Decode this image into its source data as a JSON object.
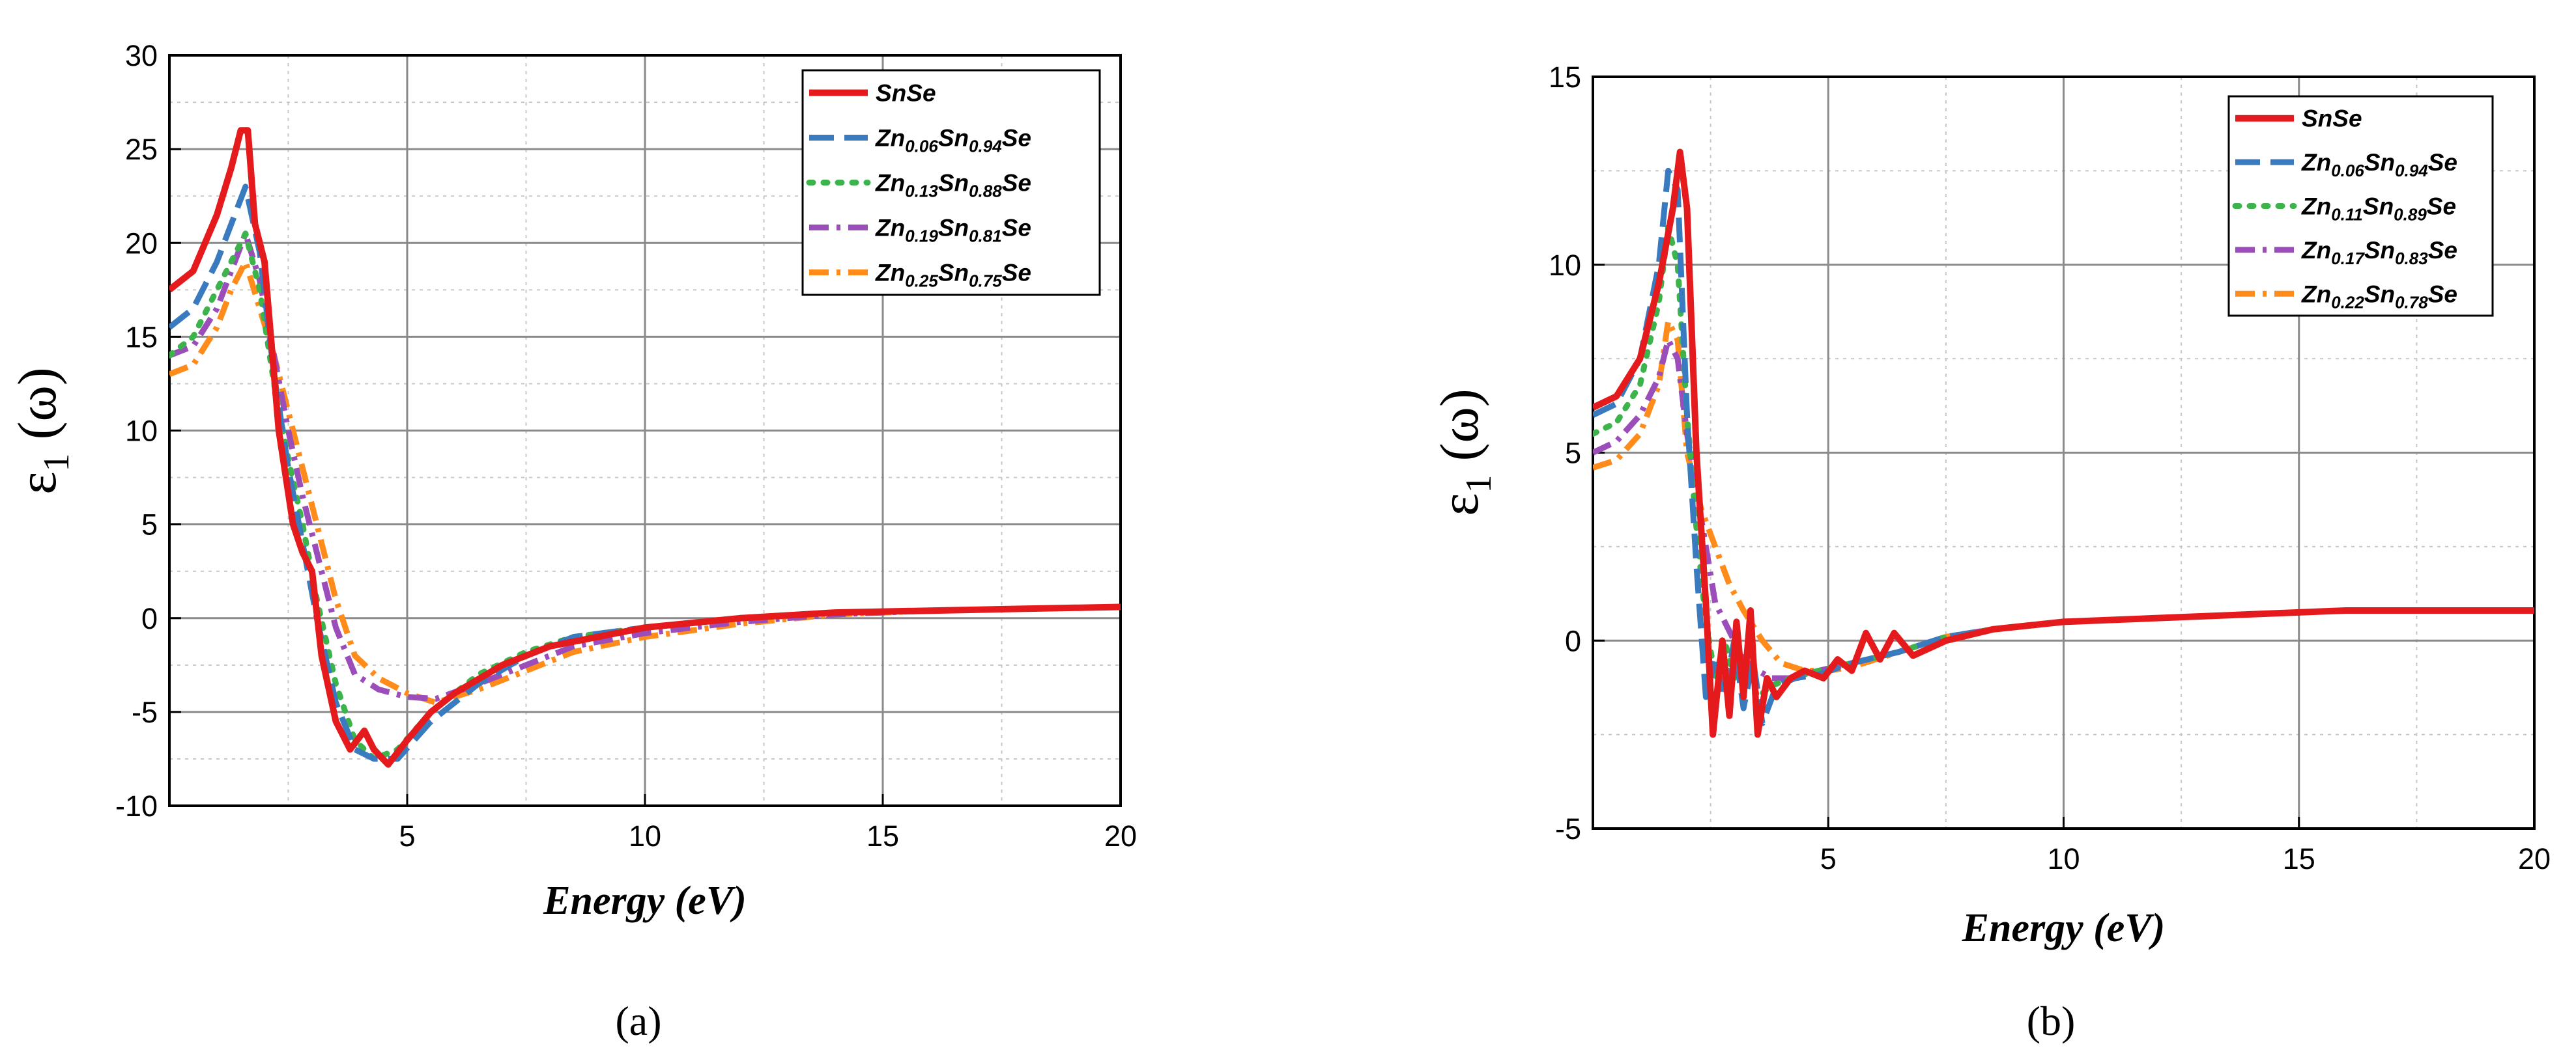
{
  "colors": {
    "series": [
      "#e41a1c",
      "#3a7bbf",
      "#3cb44b",
      "#9b4dba",
      "#ff8c1a"
    ]
  },
  "chart_data": [
    {
      "panel": "(a)",
      "type": "line",
      "title": "",
      "xlabel": "Energy (eV)",
      "ylabel": "ε1 (ω)",
      "xlim": [
        0,
        20
      ],
      "ylim": [
        -10,
        30
      ],
      "xticks": [
        5,
        10,
        15,
        20
      ],
      "yticks": [
        -10,
        -5,
        0,
        5,
        10,
        15,
        20,
        25,
        30
      ],
      "grid": true,
      "legend_position": "top-right",
      "series": [
        {
          "name": "SnSe",
          "label": "SnSe",
          "sub": [],
          "style": "solid",
          "color": "#e41a1c",
          "x": [
            0,
            0.5,
            1.0,
            1.3,
            1.5,
            1.65,
            1.8,
            2.0,
            2.3,
            2.6,
            2.8,
            3.0,
            3.2,
            3.5,
            3.8,
            4.1,
            4.3,
            4.6,
            5.0,
            5.5,
            6.0,
            7.0,
            8.0,
            9.0,
            10.0,
            12.0,
            14.0,
            16.0,
            18.0,
            20.0
          ],
          "y": [
            17.5,
            18.5,
            21.5,
            24.0,
            26.0,
            26.0,
            21.0,
            19.0,
            10.0,
            5.0,
            3.5,
            2.5,
            -2.0,
            -5.5,
            -7.0,
            -6.0,
            -7.0,
            -7.8,
            -6.5,
            -5.0,
            -4.0,
            -2.5,
            -1.5,
            -1.0,
            -0.5,
            0.0,
            0.3,
            0.4,
            0.5,
            0.6
          ]
        },
        {
          "name": "Zn0.06Sn0.94Se",
          "label": "Zn",
          "sub": [
            "0.06",
            "0.94"
          ],
          "style": "dash",
          "color": "#3a7bbf",
          "x": [
            0,
            0.5,
            1.0,
            1.3,
            1.6,
            1.9,
            2.2,
            2.5,
            2.8,
            3.1,
            3.5,
            3.9,
            4.3,
            4.8,
            5.5,
            6.5,
            7.5,
            8.5,
            10.0,
            12.0,
            14.0,
            16.0,
            18.0,
            20.0
          ],
          "y": [
            15.5,
            16.5,
            19.0,
            21.0,
            23.0,
            19.5,
            13.0,
            8.0,
            4.0,
            0.0,
            -4.5,
            -7.0,
            -7.5,
            -7.5,
            -5.5,
            -3.5,
            -2.0,
            -1.0,
            -0.5,
            0.0,
            0.3,
            0.4,
            0.5,
            0.6
          ]
        },
        {
          "name": "Zn0.13Sn0.88Se",
          "label": "Zn",
          "sub": [
            "0.13",
            "0.88"
          ],
          "style": "dot",
          "color": "#3cb44b",
          "x": [
            0,
            0.5,
            1.0,
            1.3,
            1.6,
            1.9,
            2.2,
            2.5,
            2.8,
            3.1,
            3.5,
            3.9,
            4.3,
            4.8,
            5.5,
            6.5,
            7.5,
            8.5,
            10.0,
            12.0,
            14.0,
            16.0,
            18.0,
            20.0
          ],
          "y": [
            14.0,
            15.0,
            17.5,
            19.0,
            20.5,
            17.5,
            12.5,
            8.5,
            5.0,
            1.0,
            -3.5,
            -6.5,
            -7.5,
            -7.0,
            -5.0,
            -3.0,
            -1.8,
            -1.0,
            -0.5,
            0.0,
            0.3,
            0.4,
            0.5,
            0.6
          ]
        },
        {
          "name": "Zn0.19Sn0.81Se",
          "label": "Zn",
          "sub": [
            "0.19",
            "0.81"
          ],
          "style": "dashdot",
          "color": "#9b4dba",
          "x": [
            0,
            0.5,
            1.0,
            1.3,
            1.6,
            1.9,
            2.2,
            2.5,
            2.8,
            3.1,
            3.5,
            3.9,
            4.4,
            5.0,
            5.6,
            6.5,
            7.5,
            8.5,
            10.0,
            12.0,
            14.0,
            16.0,
            18.0,
            20.0
          ],
          "y": [
            14.0,
            14.5,
            16.5,
            18.5,
            20.5,
            18.0,
            14.0,
            10.0,
            6.5,
            3.5,
            -0.5,
            -3.0,
            -3.8,
            -4.2,
            -4.3,
            -3.5,
            -2.5,
            -1.5,
            -0.8,
            -0.2,
            0.2,
            0.4,
            0.5,
            0.6
          ]
        },
        {
          "name": "Zn0.25Sn0.75Se",
          "label": "Zn",
          "sub": [
            "0.25",
            "0.75"
          ],
          "style": "dashdot",
          "color": "#ff8c1a",
          "x": [
            0,
            0.5,
            1.0,
            1.3,
            1.6,
            1.9,
            2.2,
            2.5,
            2.8,
            3.1,
            3.5,
            3.9,
            4.4,
            5.0,
            5.6,
            6.5,
            7.5,
            8.5,
            10.0,
            12.0,
            14.0,
            16.0,
            18.0,
            20.0
          ],
          "y": [
            13.0,
            13.5,
            15.5,
            17.5,
            19.0,
            16.5,
            14.0,
            11.0,
            8.0,
            5.0,
            1.0,
            -2.0,
            -3.2,
            -4.0,
            -4.5,
            -3.8,
            -2.8,
            -1.8,
            -1.0,
            -0.3,
            0.2,
            0.4,
            0.5,
            0.6
          ]
        }
      ]
    },
    {
      "panel": "(b)",
      "type": "line",
      "title": "",
      "xlabel": "Energy (eV)",
      "ylabel": "ε1 (ω)",
      "xlim": [
        0,
        20
      ],
      "ylim": [
        -5,
        15
      ],
      "xticks": [
        5,
        10,
        15,
        20
      ],
      "yticks": [
        -5,
        0,
        5,
        10,
        15
      ],
      "grid": true,
      "legend_position": "top-right",
      "series": [
        {
          "name": "SnSe",
          "label": "SnSe",
          "sub": [],
          "style": "solid",
          "color": "#e41a1c",
          "x": [
            0,
            0.5,
            1.0,
            1.4,
            1.7,
            1.85,
            2.0,
            2.2,
            2.4,
            2.55,
            2.75,
            2.9,
            3.05,
            3.2,
            3.35,
            3.5,
            3.7,
            3.9,
            4.2,
            4.5,
            4.9,
            5.2,
            5.5,
            5.8,
            6.1,
            6.4,
            6.8,
            7.5,
            8.5,
            10.0,
            12.0,
            14.0,
            16.0,
            18.0,
            20.0
          ],
          "y": [
            6.2,
            6.5,
            7.5,
            9.5,
            11.5,
            13.0,
            11.5,
            5.0,
            1.0,
            -2.5,
            0.0,
            -2.0,
            0.5,
            -1.5,
            0.8,
            -2.5,
            -1.0,
            -1.5,
            -1.0,
            -0.8,
            -1.0,
            -0.5,
            -0.8,
            0.2,
            -0.5,
            0.2,
            -0.4,
            0.0,
            0.3,
            0.5,
            0.6,
            0.7,
            0.8,
            0.8,
            0.8
          ]
        },
        {
          "name": "Zn0.06Sn0.94Se",
          "label": "Zn",
          "sub": [
            "0.06",
            "0.94"
          ],
          "style": "dash",
          "color": "#3a7bbf",
          "x": [
            0,
            0.5,
            1.0,
            1.4,
            1.6,
            1.8,
            2.0,
            2.2,
            2.4,
            2.6,
            2.8,
            3.0,
            3.2,
            3.4,
            3.6,
            3.9,
            4.3,
            4.8,
            5.5,
            6.5,
            7.5,
            8.5,
            10.0,
            12.0,
            14.0,
            16.0,
            18.0,
            20.0
          ],
          "y": [
            6.0,
            6.3,
            7.5,
            10.0,
            12.5,
            12.0,
            6.0,
            2.0,
            -1.5,
            -0.5,
            -1.5,
            0.0,
            -1.8,
            -0.5,
            -2.2,
            -1.2,
            -1.0,
            -0.9,
            -0.6,
            -0.3,
            0.1,
            0.3,
            0.5,
            0.6,
            0.7,
            0.8,
            0.8,
            0.8
          ]
        },
        {
          "name": "Zn0.11Sn0.89Se",
          "label": "Zn",
          "sub": [
            "0.11",
            "0.89"
          ],
          "style": "dot",
          "color": "#3cb44b",
          "x": [
            0,
            0.5,
            1.0,
            1.4,
            1.6,
            1.8,
            2.0,
            2.2,
            2.4,
            2.6,
            2.8,
            3.0,
            3.2,
            3.5,
            3.8,
            4.2,
            4.8,
            5.5,
            6.5,
            7.5,
            8.5,
            10.0,
            12.0,
            14.0,
            16.0,
            18.0,
            20.0
          ],
          "y": [
            5.5,
            5.8,
            6.8,
            9.0,
            11.0,
            10.0,
            6.0,
            3.0,
            0.5,
            -1.0,
            0.0,
            -1.0,
            -0.5,
            -1.5,
            -1.2,
            -1.0,
            -0.8,
            -0.6,
            -0.3,
            0.1,
            0.3,
            0.5,
            0.6,
            0.7,
            0.8,
            0.8,
            0.8
          ]
        },
        {
          "name": "Zn0.17Sn0.83Se",
          "label": "Zn",
          "sub": [
            "0.17",
            "0.83"
          ],
          "style": "dashdot",
          "color": "#9b4dba",
          "x": [
            0,
            0.5,
            1.0,
            1.4,
            1.6,
            1.8,
            2.0,
            2.2,
            2.4,
            2.6,
            2.8,
            3.0,
            3.2,
            3.5,
            3.8,
            4.2,
            4.8,
            5.5,
            6.5,
            7.5,
            8.5,
            10.0,
            12.0,
            14.0,
            16.0,
            18.0,
            20.0
          ],
          "y": [
            5.0,
            5.3,
            6.0,
            7.0,
            8.0,
            7.5,
            5.5,
            4.0,
            2.5,
            1.0,
            0.5,
            0.0,
            -0.5,
            -0.8,
            -1.0,
            -1.0,
            -0.8,
            -0.6,
            -0.3,
            0.1,
            0.3,
            0.5,
            0.6,
            0.7,
            0.8,
            0.8,
            0.8
          ]
        },
        {
          "name": "Zn0.22Sn0.78Se",
          "label": "Zn",
          "sub": [
            "0.22",
            "0.78"
          ],
          "style": "dashdot",
          "color": "#ff8c1a",
          "x": [
            0,
            0.5,
            1.0,
            1.4,
            1.6,
            1.8,
            2.0,
            2.3,
            2.6,
            2.9,
            3.2,
            3.6,
            4.0,
            4.5,
            5.0,
            5.5,
            6.5,
            7.5,
            8.5,
            10.0,
            12.0,
            14.0,
            16.0,
            18.0,
            20.0
          ],
          "y": [
            4.6,
            4.8,
            5.5,
            6.8,
            8.5,
            8.0,
            5.0,
            3.5,
            2.5,
            1.5,
            0.8,
            0.0,
            -0.6,
            -0.8,
            -0.8,
            -0.7,
            -0.3,
            0.1,
            0.3,
            0.5,
            0.6,
            0.7,
            0.8,
            0.8,
            0.8
          ]
        }
      ]
    }
  ]
}
